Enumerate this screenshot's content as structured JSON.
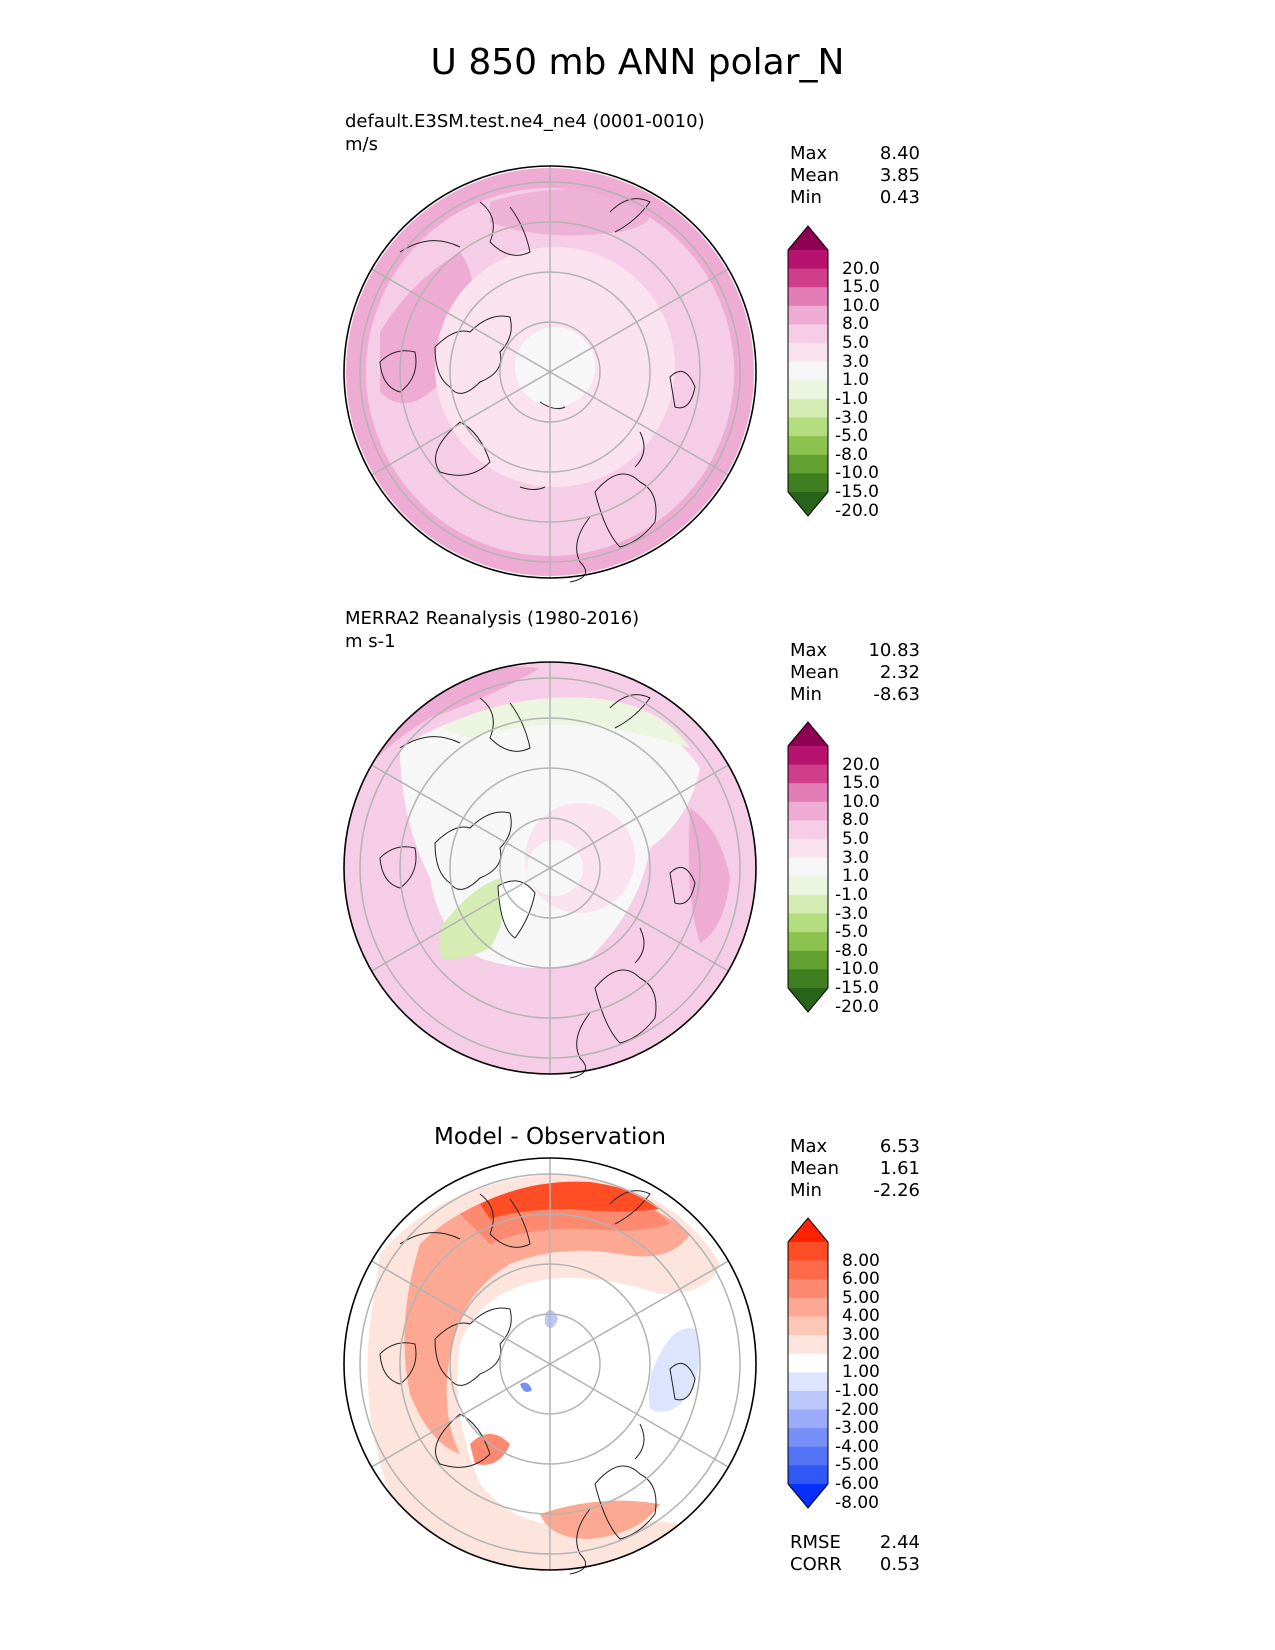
{
  "figure_title": "U 850 mb ANN polar_N",
  "chart_data": [
    {
      "type": "heatmap",
      "projection": "north polar stereographic",
      "panel": "test",
      "title_left": "default.E3SM.test.ne4_ne4 (0001-0010)",
      "units": "m/s",
      "stats": [
        {
          "label": "Max",
          "value": "8.40"
        },
        {
          "label": "Mean",
          "value": "3.85"
        },
        {
          "label": "Min",
          "value": "0.43"
        }
      ],
      "colorbar_ticks": [
        "20.0",
        "15.0",
        "10.0",
        "8.0",
        "5.0",
        "3.0",
        "1.0",
        "-1.0",
        "-3.0",
        "-5.0",
        "-8.0",
        "-10.0",
        "-15.0",
        "-20.0"
      ],
      "colorbar_colors": [
        "#8e0152",
        "#b6136e",
        "#d13d8a",
        "#e27cb7",
        "#eeabd3",
        "#f6cde6",
        "#fae2ef",
        "#f7f7f7",
        "#ecf5df",
        "#d5ecb4",
        "#b4dd80",
        "#8bc34e",
        "#62a12f",
        "#3f7f1f",
        "#276419"
      ]
    },
    {
      "type": "heatmap",
      "projection": "north polar stereographic",
      "panel": "reference",
      "title_left": "MERRA2 Reanalysis (1980-2016)",
      "units": "m s-1",
      "stats": [
        {
          "label": "Max",
          "value": "10.83"
        },
        {
          "label": "Mean",
          "value": "2.32"
        },
        {
          "label": "Min",
          "value": "-8.63"
        }
      ],
      "colorbar_ticks": [
        "20.0",
        "15.0",
        "10.0",
        "8.0",
        "5.0",
        "3.0",
        "1.0",
        "-1.0",
        "-3.0",
        "-5.0",
        "-8.0",
        "-10.0",
        "-15.0",
        "-20.0"
      ],
      "colorbar_colors": [
        "#8e0152",
        "#b6136e",
        "#d13d8a",
        "#e27cb7",
        "#eeabd3",
        "#f6cde6",
        "#fae2ef",
        "#f7f7f7",
        "#ecf5df",
        "#d5ecb4",
        "#b4dd80",
        "#8bc34e",
        "#62a12f",
        "#3f7f1f",
        "#276419"
      ]
    },
    {
      "type": "heatmap",
      "projection": "north polar stereographic",
      "panel": "difference",
      "title_center": "Model - Observation",
      "stats": [
        {
          "label": "Max",
          "value": "6.53"
        },
        {
          "label": "Mean",
          "value": "1.61"
        },
        {
          "label": "Min",
          "value": "-2.26"
        }
      ],
      "metrics": [
        {
          "label": "RMSE",
          "value": "2.44"
        },
        {
          "label": "CORR",
          "value": "0.53"
        }
      ],
      "colorbar_ticks": [
        "8.00",
        "6.00",
        "5.00",
        "4.00",
        "3.00",
        "2.00",
        "1.00",
        "-1.00",
        "-2.00",
        "-3.00",
        "-4.00",
        "-5.00",
        "-6.00",
        "-8.00"
      ],
      "colorbar_colors": [
        "#ff2200",
        "#ff4d26",
        "#ff6b4a",
        "#fd8a70",
        "#fca892",
        "#fdc7b6",
        "#fde4dc",
        "#ffffff",
        "#dde4fd",
        "#bcc8fc",
        "#9aacfa",
        "#7790f8",
        "#5474f6",
        "#3058f4",
        "#0530ff"
      ]
    }
  ]
}
